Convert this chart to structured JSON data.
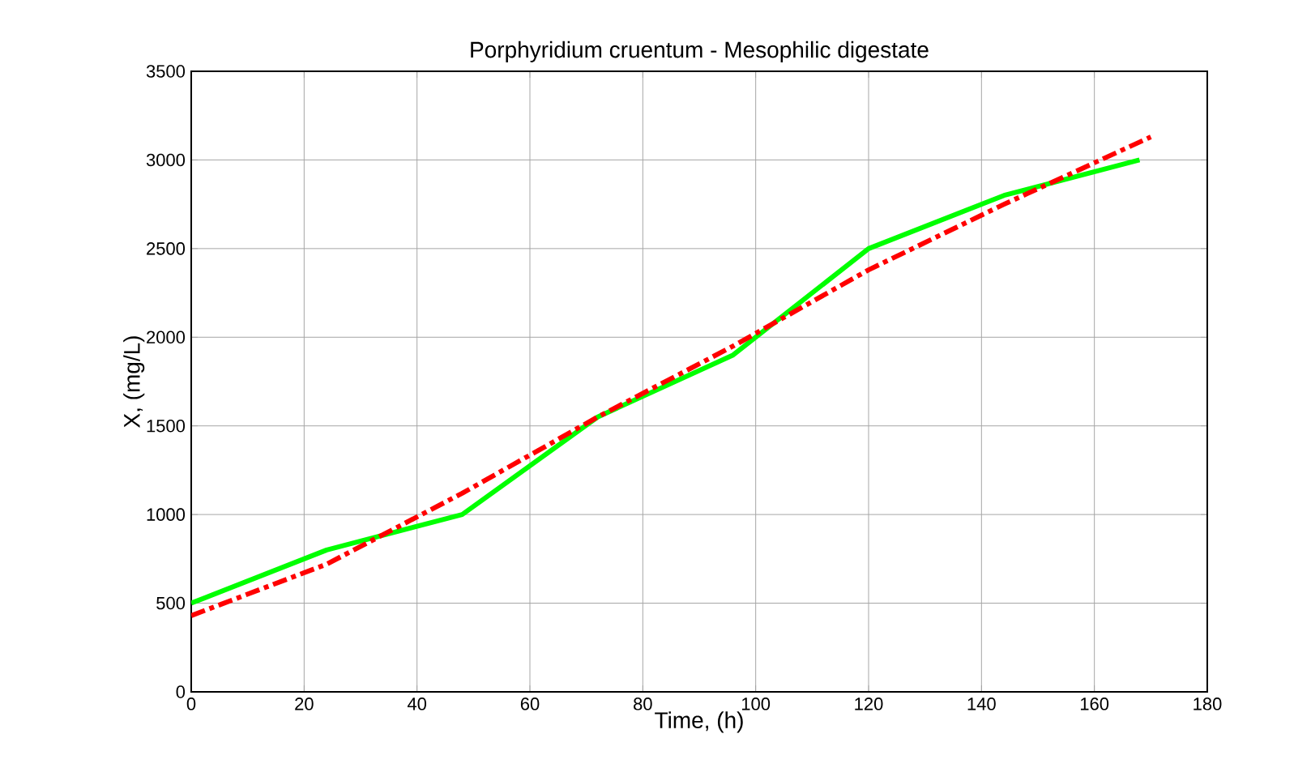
{
  "chart_data": {
    "type": "line",
    "title": "Porphyridium cruentum - Mesophilic digestate",
    "xlabel": "Time, (h)",
    "ylabel": "X, (mg/L)",
    "xlim": [
      0,
      180
    ],
    "ylim": [
      0,
      3500
    ],
    "xticks": [
      0,
      20,
      40,
      60,
      80,
      100,
      120,
      140,
      160,
      180
    ],
    "yticks": [
      0,
      500,
      1000,
      1500,
      2000,
      2500,
      3000,
      3500
    ],
    "grid": true,
    "marker": "none",
    "series": [
      {
        "color": "#00ff00",
        "line_style": "solid",
        "x": [
          0,
          24,
          48,
          72,
          96,
          120,
          144,
          168
        ],
        "values": [
          500,
          800,
          1000,
          1550,
          1900,
          2500,
          2800,
          3000
        ]
      },
      {
        "color": "#ff0000",
        "line_style": "dashdot",
        "x": [
          0,
          24,
          48,
          72,
          96,
          120,
          144,
          170
        ],
        "values": [
          430,
          720,
          1120,
          1550,
          1950,
          2380,
          2750,
          3130
        ]
      }
    ]
  }
}
